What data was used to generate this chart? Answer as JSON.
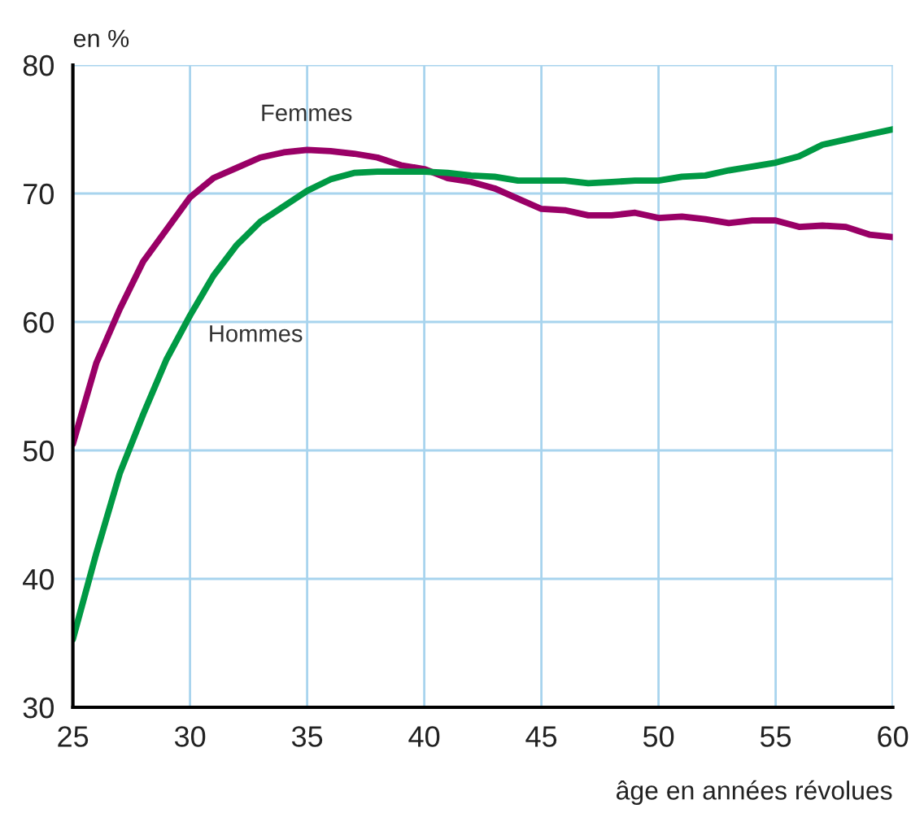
{
  "chart_data": {
    "type": "line",
    "ylabel": "en %",
    "xlabel": "âge en années révolues",
    "x": [
      25,
      26,
      27,
      28,
      29,
      30,
      31,
      32,
      33,
      34,
      35,
      36,
      37,
      38,
      39,
      40,
      41,
      42,
      43,
      44,
      45,
      46,
      47,
      48,
      49,
      50,
      51,
      52,
      53,
      54,
      55,
      56,
      57,
      58,
      59,
      60
    ],
    "series": [
      {
        "name": "Femmes",
        "color": "#990066",
        "values": [
          50.5,
          56.8,
          61,
          64.7,
          67.2,
          69.7,
          71.2,
          72,
          72.8,
          73.2,
          73.4,
          73.3,
          73.1,
          72.8,
          72.2,
          71.9,
          71.2,
          70.9,
          70.4,
          69.6,
          68.8,
          68.7,
          68.3,
          68.3,
          68.5,
          68.1,
          68.2,
          68,
          67.7,
          67.9,
          67.9,
          67.4,
          67.5,
          67.4,
          66.8,
          66.6
        ]
      },
      {
        "name": "Hommes",
        "color": "#009944",
        "values": [
          35.3,
          42,
          48.2,
          52.8,
          57.1,
          60.5,
          63.6,
          66,
          67.8,
          69,
          70.2,
          71.1,
          71.6,
          71.7,
          71.7,
          71.7,
          71.6,
          71.4,
          71.3,
          71,
          71,
          71,
          70.8,
          70.9,
          71,
          71,
          71.3,
          71.4,
          71.8,
          72.1,
          72.4,
          72.9,
          73.8,
          74.2,
          74.6,
          75
        ]
      }
    ],
    "xlim": [
      25,
      60
    ],
    "ylim": [
      30,
      80
    ],
    "xticks": [
      25,
      30,
      35,
      40,
      45,
      50,
      55,
      60
    ],
    "yticks": [
      30,
      40,
      50,
      60,
      70,
      80
    ],
    "grid": true,
    "marker": "none",
    "line_style": "solid",
    "legend": false
  }
}
